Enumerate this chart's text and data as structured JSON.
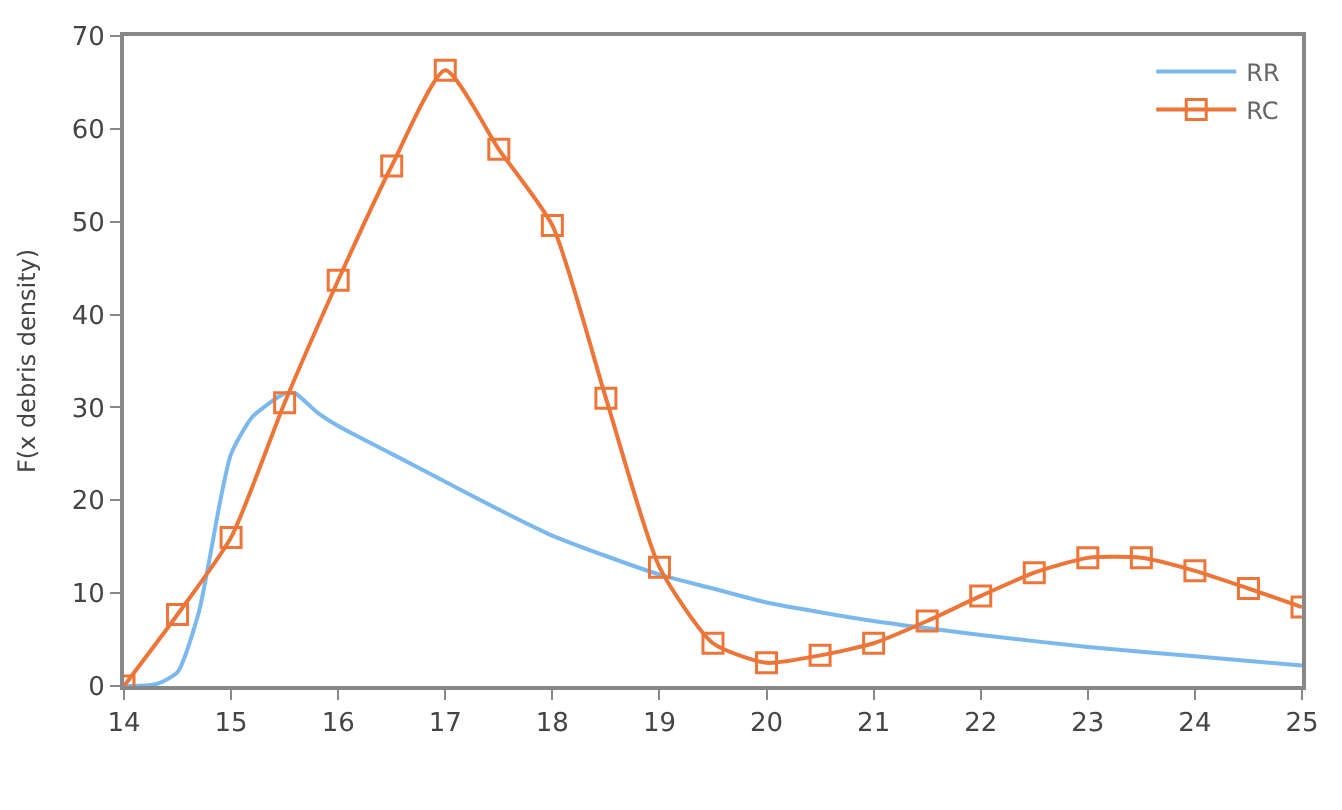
{
  "chart_data": {
    "type": "line",
    "ylabel": "F(x debris density)",
    "xlim": [
      14,
      25
    ],
    "xticks": [
      14,
      15,
      16,
      17,
      18,
      19,
      20,
      21,
      22,
      23,
      24,
      25
    ],
    "ylim": [
      0,
      70
    ],
    "yticks": [
      0,
      10,
      20,
      30,
      40,
      50,
      60,
      70
    ],
    "legend": "top right",
    "series": [
      {
        "name": "RR",
        "color": "#7ab8ee",
        "marker": "none",
        "x": [
          14,
          14.3,
          14.5,
          14.7,
          14.9,
          15,
          15.2,
          15.5,
          15.6,
          15.8,
          16,
          16.5,
          17,
          17.5,
          18,
          18.5,
          19,
          19.5,
          20,
          21,
          22,
          23,
          24,
          25
        ],
        "values": [
          0,
          0.2,
          1.5,
          8,
          20,
          25,
          29,
          31.5,
          31.5,
          29.5,
          28,
          25,
          22,
          19,
          16.2,
          14,
          12,
          10.5,
          9,
          7,
          5.5,
          4.2,
          3.2,
          2.2
        ]
      },
      {
        "name": "RC",
        "color": "#ee7538",
        "marker": "square",
        "x": [
          14,
          14.5,
          15,
          15.5,
          16,
          16.5,
          17,
          17.5,
          18,
          18.5,
          19,
          19.5,
          20,
          20.5,
          21,
          21.5,
          22,
          22.5,
          23,
          23.5,
          24,
          24.5,
          25
        ],
        "values": [
          0,
          7.7,
          16,
          30.5,
          43.7,
          56,
          66.3,
          57.8,
          49.6,
          31,
          12.8,
          4.6,
          2.5,
          3.3,
          4.6,
          7,
          9.7,
          12.2,
          13.8,
          13.8,
          12.4,
          10.5,
          8.5
        ]
      }
    ]
  }
}
